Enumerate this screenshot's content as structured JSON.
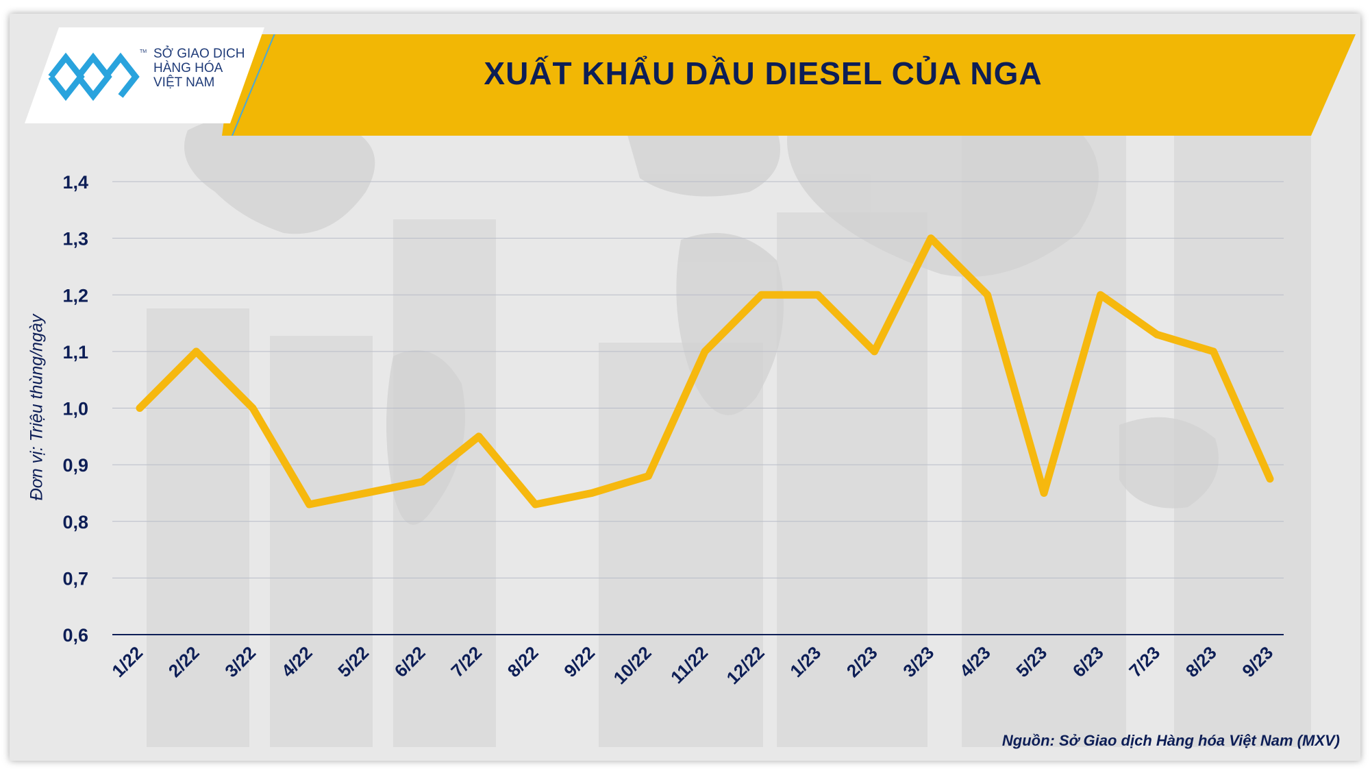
{
  "header": {
    "title": "XUẤT KHẨU DẦU DIESEL CỦA NGA",
    "logo_lines": [
      "SỞ GIAO DỊCH",
      "HÀNG HÓA",
      "VIỆT NAM"
    ],
    "logo_tm": "TM",
    "band_color": "#f2b705"
  },
  "footer": {
    "source": "Nguồn: Sở Giao dịch Hàng hóa Việt Nam (MXV)"
  },
  "chart_data": {
    "type": "line",
    "title": "XUẤT KHẨU DẦU DIESEL CỦA NGA",
    "ylabel": "Đơn vị: Triệu thùng/ngày",
    "xlabel": "",
    "categories": [
      "1/22",
      "2/22",
      "3/22",
      "4/22",
      "5/22",
      "6/22",
      "7/22",
      "8/22",
      "9/22",
      "10/22",
      "11/22",
      "12/22",
      "1/23",
      "2/23",
      "3/23",
      "4/23",
      "5/23",
      "6/23",
      "7/23",
      "8/23",
      "9/23"
    ],
    "series": [
      {
        "values": [
          1.0,
          1.1,
          1.0,
          0.83,
          0.85,
          0.87,
          0.95,
          0.83,
          0.85,
          0.88,
          1.1,
          1.2,
          1.2,
          1.1,
          1.3,
          1.2,
          0.85,
          1.2,
          1.13,
          1.1,
          0.875
        ],
        "color": "#f6b80e"
      }
    ],
    "yticks": [
      "0,6",
      "0,7",
      "0,8",
      "0,9",
      "1,0",
      "1,1",
      "1,2",
      "1,3",
      "1,4"
    ],
    "ylim": [
      0.6,
      1.4
    ],
    "grid": true
  }
}
